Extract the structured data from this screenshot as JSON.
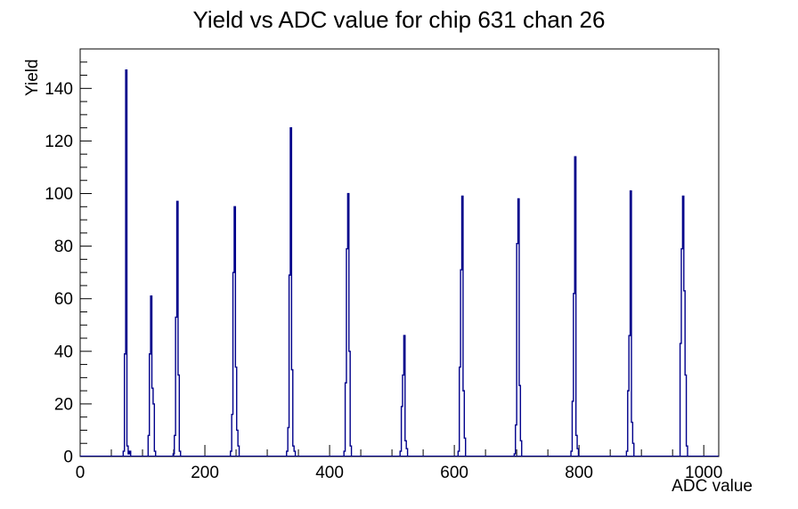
{
  "chart_data": {
    "type": "histogram",
    "title": "Yield vs ADC value for chip 631 chan 26",
    "xlabel": "ADC value",
    "ylabel": "Yield",
    "grid": false,
    "legend": false,
    "background_color": "#ffffff",
    "axis_color": "#000000",
    "line_color": "#00008b",
    "x_axis": {
      "min": 0,
      "max": 1024,
      "major_ticks": [
        0,
        200,
        400,
        600,
        800,
        1000
      ],
      "minor_tick_step": 50
    },
    "y_axis": {
      "min": 0,
      "max": 155,
      "major_ticks": [
        0,
        20,
        40,
        60,
        80,
        100,
        120,
        140
      ],
      "minor_tick_step": 5
    },
    "peaks": [
      {
        "adc": 74,
        "yield": 147,
        "profile": [
          [
            -4,
            2
          ],
          [
            -2,
            39
          ],
          [
            0,
            147
          ],
          [
            2,
            4
          ],
          [
            4,
            1
          ],
          [
            6,
            2
          ]
        ]
      },
      {
        "adc": 114,
        "yield": 61,
        "profile": [
          [
            -4,
            8
          ],
          [
            -2,
            39
          ],
          [
            0,
            61
          ],
          [
            2,
            26
          ],
          [
            4,
            20
          ],
          [
            6,
            2
          ]
        ]
      },
      {
        "adc": 156,
        "yield": 97,
        "profile": [
          [
            -6,
            1
          ],
          [
            -4,
            8
          ],
          [
            -2,
            53
          ],
          [
            0,
            97
          ],
          [
            2,
            31
          ],
          [
            4,
            2
          ]
        ]
      },
      {
        "adc": 248,
        "yield": 95,
        "profile": [
          [
            -6,
            2
          ],
          [
            -4,
            16
          ],
          [
            -2,
            70
          ],
          [
            0,
            95
          ],
          [
            2,
            34
          ],
          [
            4,
            10
          ],
          [
            6,
            4
          ]
        ]
      },
      {
        "adc": 338,
        "yield": 125,
        "profile": [
          [
            -6,
            2
          ],
          [
            -4,
            11
          ],
          [
            -2,
            69
          ],
          [
            0,
            125
          ],
          [
            2,
            33
          ],
          [
            4,
            4
          ],
          [
            6,
            2
          ]
        ]
      },
      {
        "adc": 430,
        "yield": 100,
        "profile": [
          [
            -6,
            2
          ],
          [
            -4,
            28
          ],
          [
            -2,
            79
          ],
          [
            0,
            100
          ],
          [
            2,
            40
          ],
          [
            4,
            4
          ]
        ]
      },
      {
        "adc": 520,
        "yield": 46,
        "profile": [
          [
            -6,
            2
          ],
          [
            -4,
            19
          ],
          [
            -2,
            31
          ],
          [
            0,
            46
          ],
          [
            2,
            6
          ],
          [
            4,
            3
          ]
        ]
      },
      {
        "adc": 613,
        "yield": 99,
        "profile": [
          [
            -6,
            2
          ],
          [
            -4,
            34
          ],
          [
            -2,
            71
          ],
          [
            0,
            99
          ],
          [
            2,
            25
          ],
          [
            4,
            7
          ]
        ]
      },
      {
        "adc": 703,
        "yield": 98,
        "profile": [
          [
            -6,
            1
          ],
          [
            -4,
            12
          ],
          [
            -2,
            81
          ],
          [
            0,
            98
          ],
          [
            2,
            27
          ],
          [
            4,
            6
          ]
        ]
      },
      {
        "adc": 794,
        "yield": 114,
        "profile": [
          [
            -6,
            2
          ],
          [
            -4,
            21
          ],
          [
            -2,
            62
          ],
          [
            0,
            114
          ],
          [
            2,
            8
          ],
          [
            4,
            3
          ]
        ]
      },
      {
        "adc": 883,
        "yield": 101,
        "profile": [
          [
            -6,
            2
          ],
          [
            -4,
            25
          ],
          [
            -2,
            46
          ],
          [
            0,
            101
          ],
          [
            2,
            13
          ],
          [
            4,
            5
          ]
        ]
      },
      {
        "adc": 967,
        "yield": 99,
        "profile": [
          [
            -4,
            43
          ],
          [
            -2,
            79
          ],
          [
            0,
            99
          ],
          [
            2,
            63
          ],
          [
            4,
            31
          ],
          [
            6,
            4
          ]
        ]
      }
    ]
  }
}
